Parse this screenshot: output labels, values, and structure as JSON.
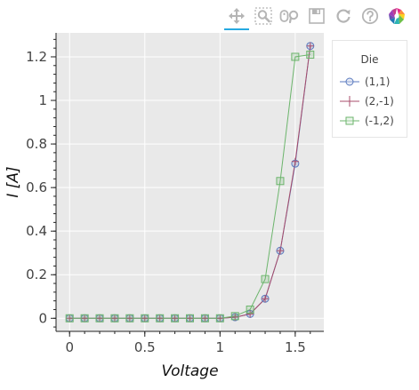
{
  "toolbar": {
    "active_color": "#26aae1",
    "tools": [
      {
        "name": "pan-tool",
        "icon": "move-icon",
        "active": true
      },
      {
        "name": "box-zoom-tool",
        "icon": "box-zoom-icon",
        "active": false
      },
      {
        "name": "wheel-zoom-tool",
        "icon": "wheel-zoom-icon",
        "active": false
      },
      {
        "name": "save-tool",
        "icon": "save-icon",
        "active": false
      },
      {
        "name": "reset-tool",
        "icon": "reset-icon",
        "active": false
      },
      {
        "name": "help-tool",
        "icon": "help-icon",
        "active": false
      },
      {
        "name": "bokeh-logo",
        "icon": "bokeh-logo-icon",
        "active": false
      }
    ]
  },
  "legend": {
    "title": "Die"
  },
  "chart_data": {
    "type": "line",
    "title": "",
    "xlabel": "Voltage",
    "ylabel": "I [A]",
    "xlim": [
      -0.09,
      1.69
    ],
    "ylim": [
      -0.06,
      1.31
    ],
    "x_ticks": [
      0,
      0.5,
      1,
      1.5
    ],
    "x_tick_labels": [
      "0",
      "0.5",
      "1",
      "1.5"
    ],
    "y_ticks": [
      0,
      0.2,
      0.4,
      0.6,
      0.8,
      1,
      1.2
    ],
    "y_tick_labels": [
      "0",
      "0.2",
      "0.4",
      "0.6",
      "0.8",
      "1",
      "1.2"
    ],
    "grid": true,
    "background": "#e9e9e9",
    "legend_placement": "right",
    "series": [
      {
        "name": "(1,1)",
        "color": "#5a7abf",
        "marker": "circle",
        "x": [
          0,
          0.1,
          0.2,
          0.3,
          0.4,
          0.5,
          0.6,
          0.7,
          0.8,
          0.9,
          1.0,
          1.1,
          1.2,
          1.3,
          1.4,
          1.5,
          1.6
        ],
        "y": [
          0,
          0,
          0,
          0,
          0,
          0,
          0,
          0,
          0,
          0,
          0,
          0.005,
          0.02,
          0.09,
          0.31,
          0.71,
          1.25
        ]
      },
      {
        "name": "(2,-1)",
        "color": "#a84d6b",
        "marker": "cross",
        "x": [
          0,
          0.1,
          0.2,
          0.3,
          0.4,
          0.5,
          0.6,
          0.7,
          0.8,
          0.9,
          1.0,
          1.1,
          1.2,
          1.3,
          1.4,
          1.5,
          1.6
        ],
        "y": [
          0,
          0,
          0,
          0,
          0,
          0,
          0,
          0,
          0,
          0,
          0,
          0.005,
          0.02,
          0.09,
          0.31,
          0.72,
          1.25
        ]
      },
      {
        "name": "(-1,2)",
        "color": "#6cb56c",
        "marker": "square",
        "x": [
          0,
          0.1,
          0.2,
          0.3,
          0.4,
          0.5,
          0.6,
          0.7,
          0.8,
          0.9,
          1.0,
          1.1,
          1.2,
          1.3,
          1.4,
          1.5,
          1.6
        ],
        "y": [
          0,
          0,
          0,
          0,
          0,
          0,
          0,
          0,
          0,
          0,
          0,
          0.01,
          0.04,
          0.18,
          0.63,
          1.2,
          1.21
        ]
      }
    ]
  }
}
